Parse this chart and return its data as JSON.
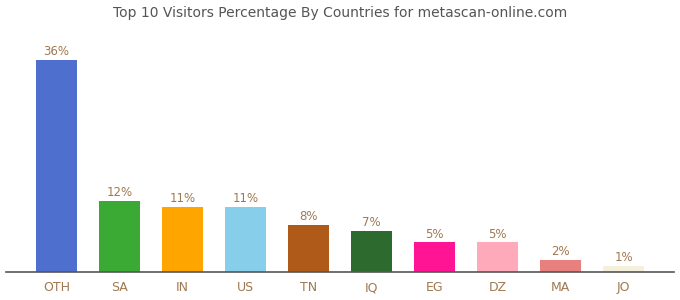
{
  "categories": [
    "OTH",
    "SA",
    "IN",
    "US",
    "TN",
    "IQ",
    "EG",
    "DZ",
    "MA",
    "JO"
  ],
  "values": [
    36,
    12,
    11,
    11,
    8,
    7,
    5,
    5,
    2,
    1
  ],
  "labels": [
    "36%",
    "12%",
    "11%",
    "11%",
    "8%",
    "7%",
    "5%",
    "5%",
    "2%",
    "1%"
  ],
  "bar_colors": [
    "#4f6fce",
    "#3aaa35",
    "#ffa500",
    "#87ceeb",
    "#b05a1a",
    "#2d6a2d",
    "#ff1493",
    "#ffaabb",
    "#e88080",
    "#f5f0dc"
  ],
  "title": "Top 10 Visitors Percentage By Countries for metascan-online.com",
  "title_fontsize": 10,
  "label_fontsize": 8.5,
  "tick_fontsize": 9,
  "label_color": "#a07850",
  "tick_color": "#a07850",
  "background_color": "#ffffff",
  "ylim": [
    0,
    42
  ]
}
